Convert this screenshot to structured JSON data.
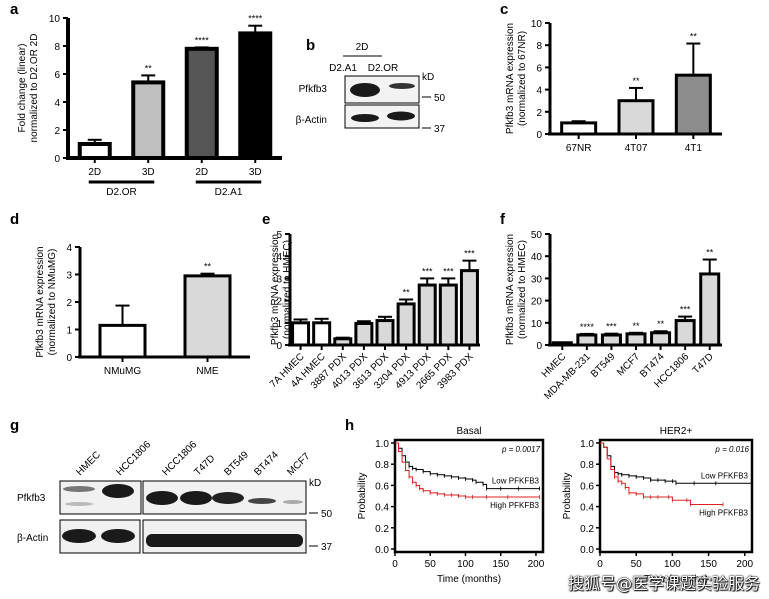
{
  "panels": {
    "a": "a",
    "b": "b",
    "c": "c",
    "d": "d",
    "e": "e",
    "f": "f",
    "g": "g",
    "h": "h"
  },
  "chart_data": [
    {
      "id": "a",
      "type": "bar",
      "ylabel_lines": [
        "Fold change (linear)",
        "normalized to D2.OR 2D"
      ],
      "ylim": [
        0,
        10
      ],
      "yticks": [
        "0",
        "2",
        "4",
        "6",
        "8",
        "10"
      ],
      "categories": [
        "2D",
        "3D",
        "2D",
        "3D"
      ],
      "groups": [
        {
          "label": "D2.OR",
          "span": [
            0,
            1
          ]
        },
        {
          "label": "D2.A1",
          "span": [
            2,
            3
          ]
        }
      ],
      "values": [
        1.0,
        5.4,
        7.8,
        8.9
      ],
      "errors": [
        0.3,
        0.5,
        0.1,
        0.55
      ],
      "fills": [
        "#ffffff",
        "#c0c0c0",
        "#555555",
        "#000000"
      ],
      "significance": [
        "",
        "**",
        "****",
        "****"
      ]
    },
    {
      "id": "c",
      "type": "bar",
      "ylabel_lines": [
        "Pfkfb3 mRNA expression",
        "(normalized to 67NR)"
      ],
      "ylim": [
        0,
        10
      ],
      "yticks": [
        "0",
        "2",
        "4",
        "6",
        "8",
        "10"
      ],
      "categories": [
        "67NR",
        "4T07",
        "4T1"
      ],
      "values": [
        1.0,
        3.0,
        5.3
      ],
      "errors": [
        0.15,
        1.15,
        2.85
      ],
      "fills": [
        "#ffffff",
        "#d9d9d9",
        "#8c8c8c"
      ],
      "significance": [
        "",
        "**",
        "**"
      ]
    },
    {
      "id": "d",
      "type": "bar",
      "ylabel_lines": [
        "Pfkfb3 mRNA expression",
        "(normalized to NMuMG)"
      ],
      "ylim": [
        0,
        4
      ],
      "yticks": [
        "0",
        "1",
        "2",
        "3",
        "4"
      ],
      "categories": [
        "NMuMG",
        "NME"
      ],
      "values": [
        1.15,
        2.95
      ],
      "errors": [
        0.72,
        0.08
      ],
      "fills": [
        "#ffffff",
        "#d9d9d9"
      ],
      "significance": [
        "",
        "**"
      ]
    },
    {
      "id": "e",
      "type": "bar",
      "ylabel_lines": [
        "Pfkfb3 mRNA expression",
        "(normalized to HMEC)"
      ],
      "ylim": [
        0,
        5
      ],
      "yticks": [
        "0",
        "1",
        "2",
        "3",
        "4",
        "5"
      ],
      "categories": [
        "7A HMEC",
        "4A HMEC",
        "3887 PDX",
        "4013 PDX",
        "3613 PDX",
        "3204 PDX",
        "4913 PDX",
        "2665 PDX",
        "3983 PDX"
      ],
      "values": [
        1.0,
        1.0,
        0.28,
        0.97,
        1.1,
        1.85,
        2.7,
        2.7,
        3.35
      ],
      "errors": [
        0.15,
        0.18,
        0.05,
        0.1,
        0.17,
        0.2,
        0.3,
        0.3,
        0.45
      ],
      "fills": [
        "#ffffff",
        "#ffffff",
        "#d9d9d9",
        "#d9d9d9",
        "#d9d9d9",
        "#d9d9d9",
        "#d9d9d9",
        "#d9d9d9",
        "#d9d9d9"
      ],
      "significance": [
        "",
        "",
        "",
        "",
        "",
        "**",
        "***",
        "***",
        "***"
      ]
    },
    {
      "id": "f",
      "type": "bar",
      "ylabel_lines": [
        "Pfkfb3 mRNA expression",
        "(normalized to HMEC)"
      ],
      "ylim": [
        0,
        50
      ],
      "yticks": [
        "0",
        "10",
        "20",
        "30",
        "40",
        "50"
      ],
      "categories": [
        "HMEC",
        "MDA-MB-231",
        "BT549",
        "MCF7",
        "BT474",
        "HCC1806",
        "T47D"
      ],
      "values": [
        1.0,
        4.5,
        4.5,
        5.0,
        5.5,
        11.0,
        32.0
      ],
      "errors": [
        0.1,
        0.5,
        0.6,
        0.5,
        0.7,
        1.8,
        6.5
      ],
      "fills": [
        "#d9d9d9",
        "#d9d9d9",
        "#d9d9d9",
        "#d9d9d9",
        "#d9d9d9",
        "#d9d9d9",
        "#d9d9d9"
      ],
      "significance": [
        "",
        "****",
        "***",
        "**",
        "**",
        "***",
        "**"
      ]
    },
    {
      "id": "h1",
      "type": "line",
      "title": "Basal",
      "xlabel": "Time (months)",
      "ylabel": "Probability",
      "xlim": [
        0,
        210
      ],
      "ylim": [
        0,
        1.0
      ],
      "xticks": [
        "0",
        "50",
        "100",
        "150",
        "200"
      ],
      "yticks": [
        "0.0",
        "0.2",
        "0.4",
        "0.6",
        "0.8",
        "1.0"
      ],
      "pvalue": "p = 0.0017",
      "series": [
        {
          "name": "Low PFKFB3",
          "color": "#000000",
          "x": [
            0,
            5,
            10,
            15,
            20,
            25,
            30,
            40,
            50,
            60,
            70,
            80,
            90,
            100,
            110,
            115,
            125,
            130,
            150,
            175,
            205
          ],
          "y": [
            1.0,
            0.95,
            0.88,
            0.82,
            0.78,
            0.76,
            0.75,
            0.73,
            0.71,
            0.7,
            0.69,
            0.68,
            0.67,
            0.66,
            0.65,
            0.63,
            0.61,
            0.57,
            0.57,
            0.57,
            0.57
          ]
        },
        {
          "name": "High PFKFB3",
          "color": "#e02020",
          "x": [
            0,
            5,
            10,
            15,
            20,
            25,
            30,
            35,
            40,
            50,
            60,
            70,
            80,
            90,
            100,
            110,
            130,
            160,
            205
          ],
          "y": [
            1.0,
            0.92,
            0.82,
            0.74,
            0.68,
            0.63,
            0.6,
            0.57,
            0.55,
            0.53,
            0.52,
            0.51,
            0.51,
            0.5,
            0.49,
            0.49,
            0.49,
            0.49,
            0.49
          ]
        }
      ]
    },
    {
      "id": "h2",
      "type": "line",
      "title": "HER2+",
      "xlabel": "Time (months)",
      "ylabel": "Probability",
      "xlim": [
        0,
        210
      ],
      "ylim": [
        0,
        1.0
      ],
      "xticks": [
        "0",
        "50",
        "100",
        "150",
        "200"
      ],
      "yticks": [
        "0.0",
        "0.2",
        "0.4",
        "0.6",
        "0.8",
        "1.0"
      ],
      "pvalue": "p = 0.016",
      "series": [
        {
          "name": "Low PFKFB3",
          "color": "#000000",
          "x": [
            0,
            5,
            10,
            15,
            20,
            25,
            30,
            40,
            50,
            60,
            70,
            80,
            90,
            100,
            105,
            130,
            160,
            210
          ],
          "y": [
            1.0,
            0.96,
            0.88,
            0.78,
            0.72,
            0.71,
            0.7,
            0.69,
            0.68,
            0.67,
            0.65,
            0.65,
            0.64,
            0.64,
            0.62,
            0.62,
            0.62,
            0.62
          ]
        },
        {
          "name": "High PFKFB3",
          "color": "#e02020",
          "x": [
            0,
            5,
            10,
            15,
            20,
            25,
            30,
            35,
            40,
            50,
            60,
            70,
            80,
            95,
            100,
            120,
            125,
            170
          ],
          "y": [
            1.0,
            0.96,
            0.85,
            0.75,
            0.68,
            0.64,
            0.62,
            0.58,
            0.53,
            0.52,
            0.49,
            0.49,
            0.49,
            0.49,
            0.46,
            0.46,
            0.42,
            0.42
          ]
        }
      ]
    }
  ],
  "blot_b": {
    "header": "2D",
    "lanes": [
      "D2.A1",
      "D2.OR"
    ],
    "rows": [
      "Pfkfb3",
      "β-Actin"
    ],
    "unit": "kD",
    "markers": [
      "50",
      "37"
    ]
  },
  "blot_g": {
    "lanes": [
      "HMEC",
      "HCC1806",
      "HCC1806",
      "T47D",
      "BT549",
      "BT474",
      "MCF7"
    ],
    "rows": [
      "Pfkfb3",
      "β-Actin"
    ],
    "unit": "kD",
    "markers": [
      "50",
      "37"
    ]
  },
  "watermark": "搜狐号@医学课题实验服务"
}
